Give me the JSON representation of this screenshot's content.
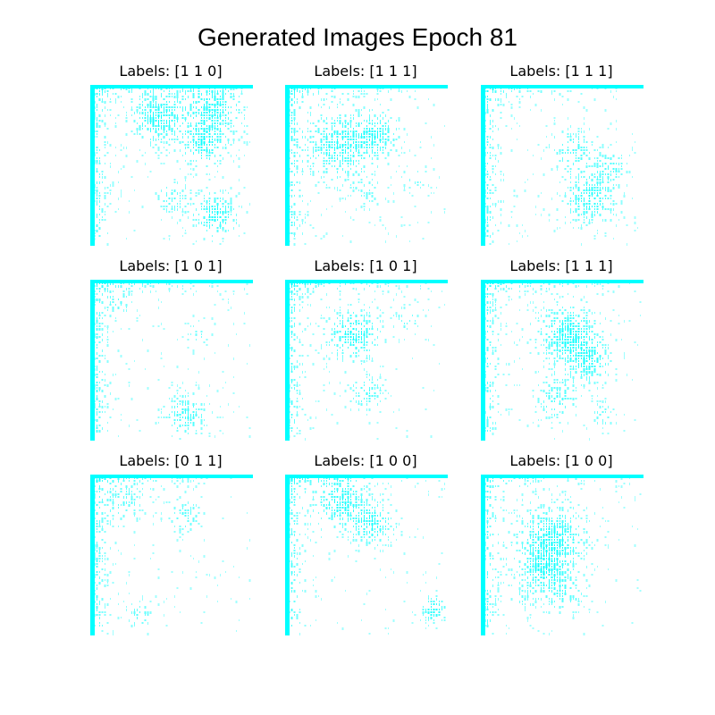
{
  "figure": {
    "title": "Generated Images Epoch 81",
    "color": "#00ffff"
  },
  "panels": [
    {
      "title": "Labels: [1 1 0]"
    },
    {
      "title": "Labels: [1 1 1]"
    },
    {
      "title": "Labels: [1 1 1]"
    },
    {
      "title": "Labels: [1 0 1]"
    },
    {
      "title": "Labels: [1 0 1]"
    },
    {
      "title": "Labels: [1 1 1]"
    },
    {
      "title": "Labels: [0 1 1]"
    },
    {
      "title": "Labels: [1 0 0]"
    },
    {
      "title": "Labels: [1 0 0]"
    }
  ]
}
